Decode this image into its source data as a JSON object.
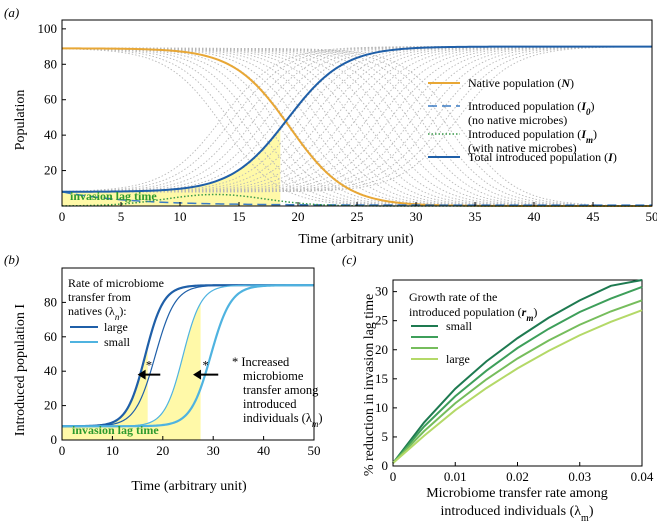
{
  "colors": {
    "native": "#e8a735",
    "total": "#1f5fa8",
    "intro0": "#3b7cc4",
    "introM": "#3a9a4a",
    "gray": "#b8b8b8",
    "lag_fill": "#fff9a8",
    "lag_text": "#2e9a2e",
    "b_large": "#1f5fa8",
    "b_small": "#4fb3e0",
    "c_lines": [
      "#1e7a50",
      "#3e9f5a",
      "#76bd5c",
      "#b4d968"
    ]
  },
  "chart_data": [
    {
      "id": "a",
      "panel_label": "(a)",
      "type": "line",
      "xlabel": "Time (arbitrary unit)",
      "ylabel": "Population",
      "xlim": [
        0,
        50
      ],
      "ylim": [
        0,
        105
      ],
      "xticks": [
        0,
        5,
        10,
        15,
        20,
        25,
        30,
        35,
        40,
        45,
        50
      ],
      "yticks": [
        20,
        40,
        60,
        80,
        100
      ],
      "lag_label": "invasion lag time",
      "lag_end": 18.5,
      "series": [
        {
          "name": "Native population (N)",
          "legend": "Native population (",
          "sym": "N",
          "cap": 89,
          "start": 89,
          "kind": "decline",
          "mid": 19.3,
          "rate": 0.42,
          "style": "solid"
        },
        {
          "name": "Introduced population (I0)",
          "legend": "Introduced population (",
          "sym": "I",
          "sub": "0",
          "sub2": "(no native microbes)",
          "start": 8,
          "end": 0.5,
          "kind": "decay",
          "rate": 0.18,
          "style": "dashed"
        },
        {
          "name": "Introduced population (Im)",
          "legend": "Introduced population (",
          "sym": "I",
          "sub": "m",
          "sub2": "(with native microbes)",
          "start": 0,
          "peak": 6.5,
          "style": "dotted"
        },
        {
          "name": "Total introduced population (I)",
          "legend": "Total introduced population (",
          "sym": "I",
          "start": 8,
          "cap": 90,
          "kind": "growth",
          "mid": 19.1,
          "rate": 0.42,
          "style": "solid"
        }
      ],
      "gray_family": {
        "count": 22,
        "mid_start": 13.5,
        "mid_end": 33.5
      }
    },
    {
      "id": "b",
      "panel_label": "(b)",
      "type": "line",
      "xlabel": "Time (arbitrary unit)",
      "ylabel": "Introduced population I",
      "xlim": [
        0,
        50
      ],
      "ylim": [
        0,
        100
      ],
      "xticks": [
        0,
        10,
        20,
        30,
        40,
        50
      ],
      "yticks": [
        0,
        20,
        40,
        60,
        80
      ],
      "start": 8,
      "cap": 90,
      "lag_label": "invasion lag time",
      "legend_title": [
        "Rate of microbiome",
        "transfer from",
        "natives (λ"
      ],
      "legend_title_sub": "n",
      "legend_title_end": "):",
      "legend_items": [
        "large",
        "small"
      ],
      "curves": [
        {
          "name": "large, low lambda_m",
          "mid": 18.5,
          "rate": 0.5,
          "color_key": "b_large",
          "width": 1.2
        },
        {
          "name": "large, high lambda_m",
          "mid": 16.5,
          "rate": 0.55,
          "color_key": "b_large",
          "width": 2.2
        },
        {
          "name": "small, low lambda_m",
          "mid": 29.5,
          "rate": 0.5,
          "color_key": "b_small",
          "width": 2.2
        },
        {
          "name": "small, high lambda_m",
          "mid": 24.0,
          "rate": 0.55,
          "color_key": "b_small",
          "width": 1.2
        }
      ],
      "lag_ends": [
        17.0,
        27.5
      ],
      "arrows": [
        {
          "x_from": 19.5,
          "x_to": 15.0,
          "y": 38
        },
        {
          "x_from": 31.0,
          "x_to": 26.0,
          "y": 38
        }
      ],
      "star": "*",
      "annotation": [
        "Increased",
        "microbiome",
        "transfer among",
        "introduced",
        "individuals (λ"
      ],
      "annotation_sub": "m",
      "annotation_end": ")"
    },
    {
      "id": "c",
      "panel_label": "(c)",
      "type": "line",
      "xlabel": [
        "Microbiome transfer rate among",
        "introduced individuals (λ"
      ],
      "xlabel_sub": "m",
      "xlabel_end": ")",
      "ylabel": "% reduction in invasion lag time",
      "xlim": [
        0,
        0.04
      ],
      "ylim": [
        0,
        32
      ],
      "xticks": [
        0,
        0.01,
        0.02,
        0.03,
        0.04
      ],
      "xticklabels": [
        "0",
        "0.01",
        "0.02",
        "0.03",
        "0.04"
      ],
      "yticks": [
        0,
        5,
        10,
        15,
        20,
        25,
        30
      ],
      "x": [
        0,
        0.005,
        0.01,
        0.015,
        0.02,
        0.025,
        0.03,
        0.035,
        0.04
      ],
      "legend_title": [
        "Growth rate of the",
        "introduced population ("
      ],
      "legend_title_sym": "r",
      "legend_title_sub": "m",
      "legend_title_end": ")",
      "legend_items": [
        "small",
        "",
        "",
        "large"
      ],
      "series": [
        {
          "name": "small",
          "values": [
            0.5,
            7.5,
            13.3,
            18.0,
            22.0,
            25.5,
            28.5,
            31.0,
            33.0
          ]
        },
        {
          "name": "rm2",
          "values": [
            0.5,
            6.8,
            12.0,
            16.4,
            20.3,
            23.6,
            26.5,
            28.8,
            30.8
          ]
        },
        {
          "name": "rm3",
          "values": [
            0.5,
            6.0,
            10.8,
            14.9,
            18.5,
            21.6,
            24.3,
            26.6,
            28.5
          ]
        },
        {
          "name": "large",
          "values": [
            0.5,
            5.2,
            9.6,
            13.4,
            16.8,
            19.8,
            22.5,
            24.8,
            26.8
          ]
        }
      ]
    }
  ]
}
